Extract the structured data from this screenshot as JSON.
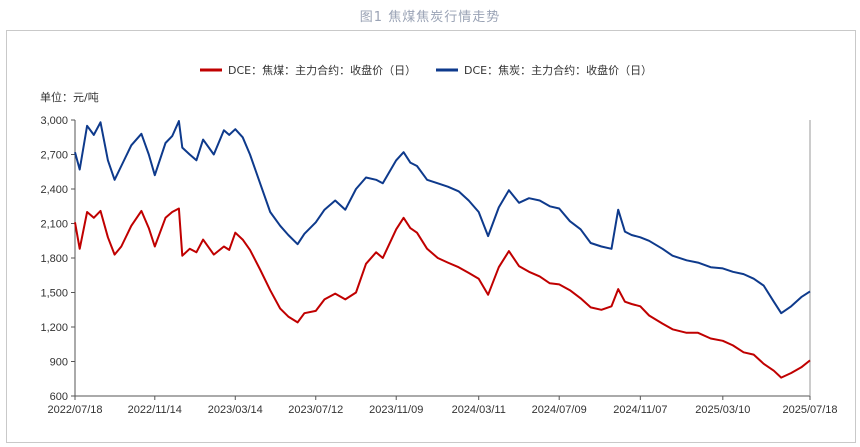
{
  "figure_title": "图1 焦煤焦炭行情走势",
  "unit_label": "单位：元/吨",
  "colors": {
    "coking_coal": "#c00000",
    "coke": "#0e3a8c",
    "frame": "#c9c9c9"
  },
  "chart_data": {
    "type": "line",
    "ylim": [
      600,
      3000
    ],
    "yticks": [
      "600",
      "900",
      "1,200",
      "1,500",
      "1,800",
      "2,100",
      "2,400",
      "2,700",
      "3,000"
    ],
    "ytick_values": [
      600,
      900,
      1200,
      1500,
      1800,
      2100,
      2400,
      2700,
      3000
    ],
    "xticks": [
      "2022/07/18",
      "2022/11/14",
      "2023/03/14",
      "2023/07/12",
      "2023/11/09",
      "2024/03/11",
      "2024/07/09",
      "2024/11/07",
      "2025/03/10",
      "2025/07/18"
    ],
    "legend_position": "top",
    "series": [
      {
        "name": "DCE：焦煤：主力合约：收盘价（日）",
        "color_key": "coking_coal",
        "points": [
          [
            "2022/07/18",
            2110
          ],
          [
            "2022/07/25",
            1880
          ],
          [
            "2022/08/05",
            2200
          ],
          [
            "2022/08/15",
            2150
          ],
          [
            "2022/08/25",
            2210
          ],
          [
            "2022/09/05",
            1980
          ],
          [
            "2022/09/15",
            1830
          ],
          [
            "2022/09/25",
            1900
          ],
          [
            "2022/10/10",
            2080
          ],
          [
            "2022/10/25",
            2210
          ],
          [
            "2022/11/05",
            2060
          ],
          [
            "2022/11/14",
            1900
          ],
          [
            "2022/11/30",
            2150
          ],
          [
            "2022/12/10",
            2200
          ],
          [
            "2022/12/20",
            2230
          ],
          [
            "2022/12/25",
            1820
          ],
          [
            "2023/01/05",
            1880
          ],
          [
            "2023/01/15",
            1850
          ],
          [
            "2023/01/25",
            1960
          ],
          [
            "2023/02/10",
            1830
          ],
          [
            "2023/02/25",
            1900
          ],
          [
            "2023/03/05",
            1870
          ],
          [
            "2023/03/14",
            2020
          ],
          [
            "2023/03/25",
            1960
          ],
          [
            "2023/04/05",
            1870
          ],
          [
            "2023/04/20",
            1700
          ],
          [
            "2023/05/05",
            1520
          ],
          [
            "2023/05/20",
            1360
          ],
          [
            "2023/06/01",
            1290
          ],
          [
            "2023/06/15",
            1240
          ],
          [
            "2023/06/25",
            1320
          ],
          [
            "2023/07/12",
            1340
          ],
          [
            "2023/07/25",
            1440
          ],
          [
            "2023/08/10",
            1490
          ],
          [
            "2023/08/25",
            1440
          ],
          [
            "2023/09/10",
            1500
          ],
          [
            "2023/09/25",
            1750
          ],
          [
            "2023/10/10",
            1850
          ],
          [
            "2023/10/20",
            1800
          ],
          [
            "2023/11/09",
            2050
          ],
          [
            "2023/11/20",
            2150
          ],
          [
            "2023/11/30",
            2060
          ],
          [
            "2023/12/10",
            2020
          ],
          [
            "2023/12/25",
            1880
          ],
          [
            "2024/01/10",
            1800
          ],
          [
            "2024/01/25",
            1760
          ],
          [
            "2024/02/10",
            1720
          ],
          [
            "2024/02/25",
            1670
          ],
          [
            "2024/03/11",
            1620
          ],
          [
            "2024/03/25",
            1480
          ],
          [
            "2024/04/10",
            1720
          ],
          [
            "2024/04/25",
            1860
          ],
          [
            "2024/05/10",
            1730
          ],
          [
            "2024/05/25",
            1680
          ],
          [
            "2024/06/10",
            1640
          ],
          [
            "2024/06/25",
            1580
          ],
          [
            "2024/07/09",
            1570
          ],
          [
            "2024/07/25",
            1520
          ],
          [
            "2024/08/10",
            1450
          ],
          [
            "2024/08/25",
            1370
          ],
          [
            "2024/09/10",
            1350
          ],
          [
            "2024/09/25",
            1380
          ],
          [
            "2024/10/05",
            1530
          ],
          [
            "2024/10/15",
            1420
          ],
          [
            "2024/10/25",
            1400
          ],
          [
            "2024/11/07",
            1380
          ],
          [
            "2024/11/20",
            1300
          ],
          [
            "2024/12/10",
            1230
          ],
          [
            "2024/12/25",
            1180
          ],
          [
            "2025/01/15",
            1150
          ],
          [
            "2025/02/01",
            1150
          ],
          [
            "2025/02/20",
            1100
          ],
          [
            "2025/03/10",
            1080
          ],
          [
            "2025/03/25",
            1040
          ],
          [
            "2025/04/10",
            980
          ],
          [
            "2025/04/25",
            960
          ],
          [
            "2025/05/10",
            880
          ],
          [
            "2025/05/25",
            820
          ],
          [
            "2025/06/05",
            760
          ],
          [
            "2025/06/20",
            800
          ],
          [
            "2025/07/05",
            850
          ],
          [
            "2025/07/18",
            910
          ]
        ]
      },
      {
        "name": "DCE：焦炭：主力合约：收盘价（日）",
        "color_key": "coke",
        "points": [
          [
            "2022/07/18",
            2720
          ],
          [
            "2022/07/25",
            2570
          ],
          [
            "2022/08/05",
            2950
          ],
          [
            "2022/08/15",
            2870
          ],
          [
            "2022/08/25",
            2980
          ],
          [
            "2022/09/05",
            2650
          ],
          [
            "2022/09/15",
            2480
          ],
          [
            "2022/09/25",
            2600
          ],
          [
            "2022/10/10",
            2780
          ],
          [
            "2022/10/25",
            2880
          ],
          [
            "2022/11/05",
            2700
          ],
          [
            "2022/11/14",
            2520
          ],
          [
            "2022/11/30",
            2800
          ],
          [
            "2022/12/10",
            2860
          ],
          [
            "2022/12/20",
            2990
          ],
          [
            "2022/12/25",
            2760
          ],
          [
            "2023/01/05",
            2700
          ],
          [
            "2023/01/15",
            2650
          ],
          [
            "2023/01/25",
            2830
          ],
          [
            "2023/02/10",
            2700
          ],
          [
            "2023/02/25",
            2910
          ],
          [
            "2023/03/05",
            2870
          ],
          [
            "2023/03/14",
            2920
          ],
          [
            "2023/03/25",
            2850
          ],
          [
            "2023/04/05",
            2700
          ],
          [
            "2023/04/20",
            2450
          ],
          [
            "2023/05/05",
            2200
          ],
          [
            "2023/05/20",
            2080
          ],
          [
            "2023/06/01",
            2000
          ],
          [
            "2023/06/15",
            1920
          ],
          [
            "2023/06/25",
            2010
          ],
          [
            "2023/07/12",
            2110
          ],
          [
            "2023/07/25",
            2220
          ],
          [
            "2023/08/10",
            2300
          ],
          [
            "2023/08/25",
            2220
          ],
          [
            "2023/09/10",
            2400
          ],
          [
            "2023/09/25",
            2500
          ],
          [
            "2023/10/10",
            2480
          ],
          [
            "2023/10/20",
            2450
          ],
          [
            "2023/11/09",
            2650
          ],
          [
            "2023/11/20",
            2720
          ],
          [
            "2023/11/30",
            2630
          ],
          [
            "2023/12/10",
            2600
          ],
          [
            "2023/12/25",
            2480
          ],
          [
            "2024/01/10",
            2450
          ],
          [
            "2024/01/25",
            2420
          ],
          [
            "2024/02/10",
            2380
          ],
          [
            "2024/02/25",
            2300
          ],
          [
            "2024/03/11",
            2200
          ],
          [
            "2024/03/25",
            1990
          ],
          [
            "2024/04/10",
            2240
          ],
          [
            "2024/04/25",
            2390
          ],
          [
            "2024/05/10",
            2280
          ],
          [
            "2024/05/25",
            2320
          ],
          [
            "2024/06/10",
            2300
          ],
          [
            "2024/06/25",
            2250
          ],
          [
            "2024/07/09",
            2230
          ],
          [
            "2024/07/25",
            2120
          ],
          [
            "2024/08/10",
            2050
          ],
          [
            "2024/08/25",
            1930
          ],
          [
            "2024/09/10",
            1900
          ],
          [
            "2024/09/25",
            1880
          ],
          [
            "2024/10/05",
            2220
          ],
          [
            "2024/10/15",
            2030
          ],
          [
            "2024/10/25",
            2000
          ],
          [
            "2024/11/07",
            1980
          ],
          [
            "2024/11/20",
            1950
          ],
          [
            "2024/12/10",
            1880
          ],
          [
            "2024/12/25",
            1820
          ],
          [
            "2025/01/15",
            1780
          ],
          [
            "2025/02/01",
            1760
          ],
          [
            "2025/02/20",
            1720
          ],
          [
            "2025/03/10",
            1710
          ],
          [
            "2025/03/25",
            1680
          ],
          [
            "2025/04/10",
            1660
          ],
          [
            "2025/04/25",
            1620
          ],
          [
            "2025/05/10",
            1560
          ],
          [
            "2025/05/25",
            1420
          ],
          [
            "2025/06/05",
            1320
          ],
          [
            "2025/06/20",
            1380
          ],
          [
            "2025/07/05",
            1460
          ],
          [
            "2025/07/18",
            1510
          ]
        ]
      }
    ]
  }
}
